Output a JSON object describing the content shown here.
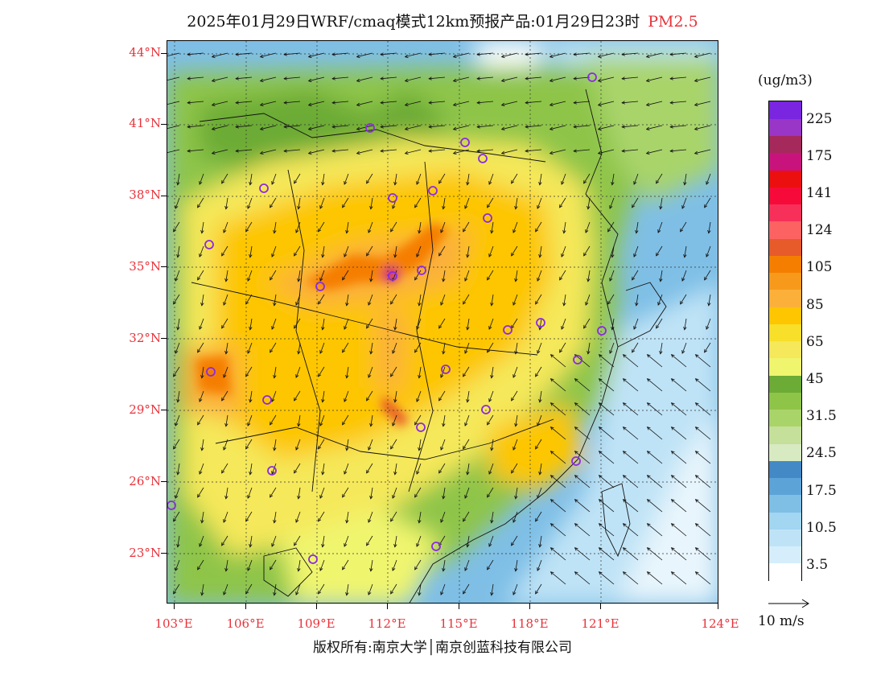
{
  "title": {
    "main": "2025年01月29日WRF/cmaq模式12km预报产品:01月29日23时",
    "pollutant": "PM2.5"
  },
  "lat_labels": [
    "44°N",
    "41°N",
    "38°N",
    "35°N",
    "32°N",
    "29°N",
    "26°N",
    "23°N"
  ],
  "lon_labels": [
    "103°E",
    "106°E",
    "109°E",
    "112°E",
    "115°E",
    "118°E",
    "121°E",
    "124°E"
  ],
  "legend": {
    "unit": "(ug/m3)",
    "colors": [
      "#ffffff",
      "#d6eefb",
      "#bfe3f6",
      "#a2d6f1",
      "#7fbfe6",
      "#5ca3d8",
      "#4289c6",
      "#d8eac2",
      "#c4e09a",
      "#a9d46a",
      "#8ec548",
      "#6cab35",
      "#f0f56e",
      "#f5e85a",
      "#f7df2a",
      "#fdc600",
      "#fbb03a",
      "#f79a1c",
      "#f57e00",
      "#e75a2a",
      "#fc6262",
      "#f7305a",
      "#f60a3a",
      "#ec0f0f",
      "#c9137c",
      "#a5295b",
      "#9935c7",
      "#7a25e0"
    ],
    "labels": [
      "3.5",
      "10.5",
      "17.5",
      "24.5",
      "31.5",
      "45",
      "65",
      "85",
      "105",
      "124",
      "141",
      "175",
      "225"
    ]
  },
  "wind_key": {
    "label": "10 m/s"
  },
  "copyright": "版权所有:南京大学│南京创蓝科技有限公司"
}
